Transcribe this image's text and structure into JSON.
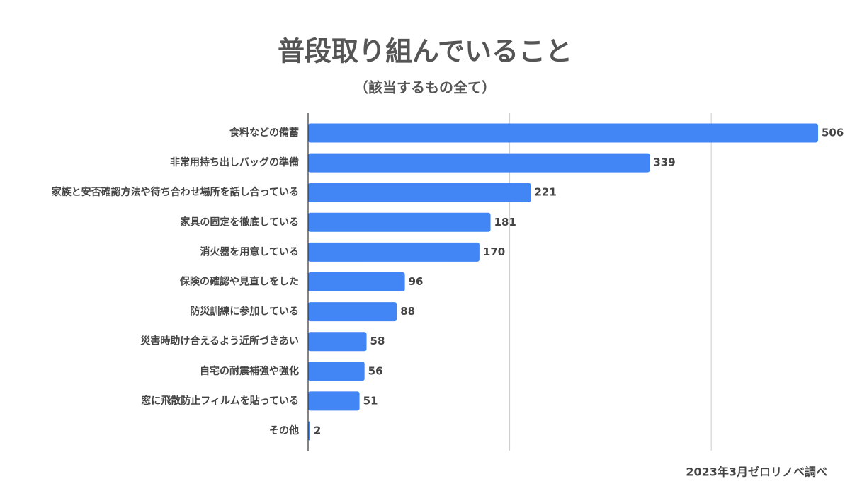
{
  "chart_data": {
    "type": "bar",
    "orientation": "horizontal",
    "title": "普段取り組んでいること",
    "subtitle": "（該当するもの全て）",
    "categories": [
      "食料などの備蓄",
      "非常用持ち出しバッグの準備",
      "家族と安否確認方法や待ち合わせ場所を話し合っている",
      "家具の固定を徹底している",
      "消火器を用意している",
      "保険の確認や見直しをした",
      "防災訓練に参加している",
      "災害時助け合えるよう近所づきあい",
      "自宅の耐震補強や強化",
      "窓に飛散防止フィルムを貼っている",
      "その他"
    ],
    "values": [
      506,
      339,
      221,
      181,
      170,
      96,
      88,
      58,
      56,
      51,
      2
    ],
    "color": "#4285f4",
    "xlim": [
      0,
      506
    ],
    "gridlines": [
      200,
      400
    ],
    "grid": true,
    "note": "2023年3月ゼロリノベ調べ"
  }
}
